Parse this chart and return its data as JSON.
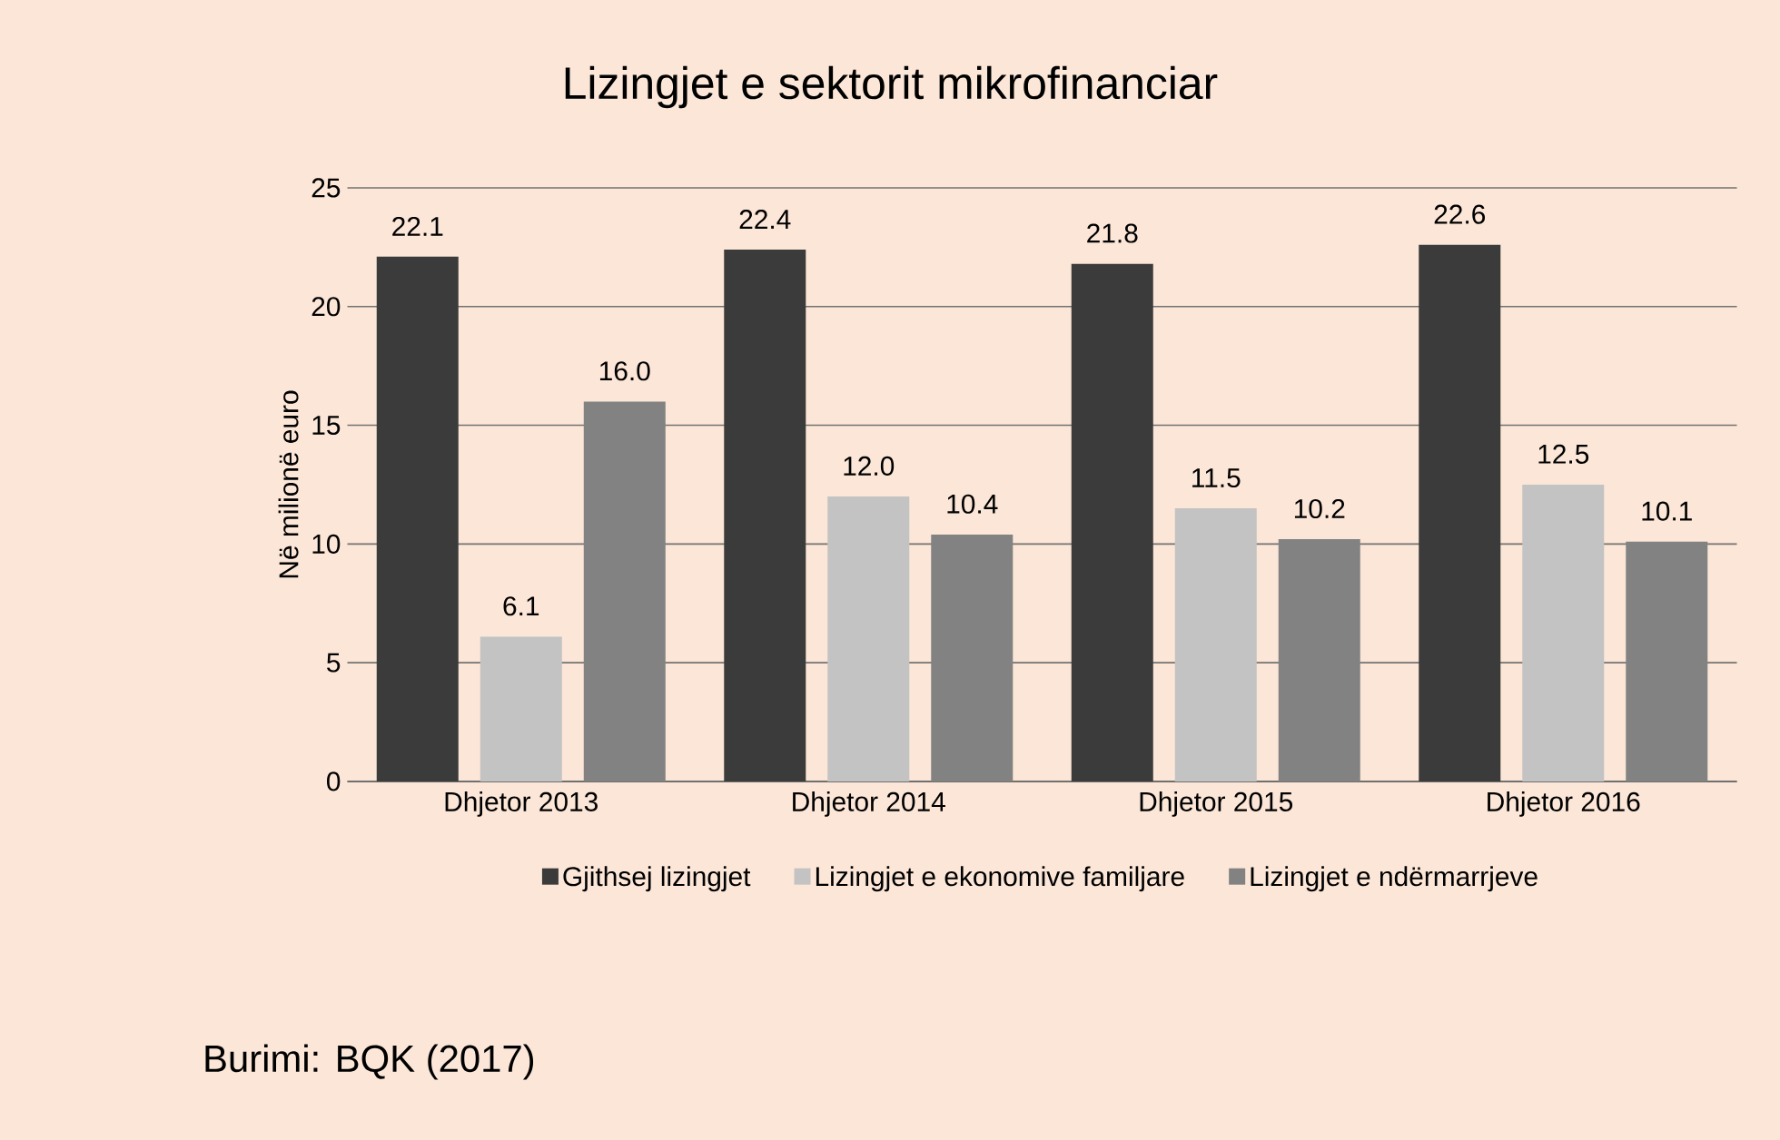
{
  "chart_data": {
    "type": "bar",
    "title": "Lizingjet e sektorit mikrofinanciar",
    "ylabel": "Në milionë euro",
    "categories": [
      "Dhjetor 2013",
      "Dhjetor 2014",
      "Dhjetor 2015",
      "Dhjetor 2016"
    ],
    "series": [
      {
        "name": "Gjithsej lizingjet",
        "color": "#3b3b3b",
        "values": [
          22.1,
          22.4,
          21.8,
          22.6
        ],
        "value_labels": [
          "22.1",
          "22.4",
          "21.8",
          "22.6"
        ]
      },
      {
        "name": "Lizingjet e ekonomive familjare",
        "color": "#c3c3c3",
        "values": [
          6.1,
          12.0,
          11.5,
          12.5
        ],
        "value_labels": [
          "6.1",
          "12.0",
          "11.5",
          "12.5"
        ]
      },
      {
        "name": "Lizingjet e ndërmarrjeve",
        "color": "#828282",
        "values": [
          16.0,
          10.4,
          10.2,
          10.1
        ],
        "value_labels": [
          "16.0",
          "10.4",
          "10.2",
          "10.1"
        ]
      }
    ],
    "ylim": [
      0,
      25
    ],
    "yticks": [
      0,
      5,
      10,
      15,
      20,
      25
    ],
    "grid": "y",
    "legend": "bottom",
    "annotations": [
      "Burimi: BQK (2017)"
    ]
  }
}
